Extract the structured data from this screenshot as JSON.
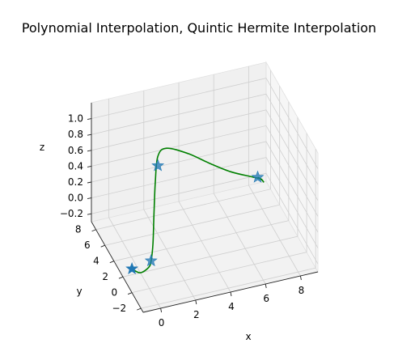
{
  "chart_data": {
    "type": "line",
    "projection": "3d",
    "title": "Polynomial Interpolation, Quintic Hermite Interpolation",
    "xlabel": "x",
    "ylabel": "y",
    "zlabel": "z",
    "xlim": [
      -1,
      9
    ],
    "ylim": [
      -2.5,
      9
    ],
    "zlim": [
      -0.3,
      1.2
    ],
    "x_ticks": [
      "0",
      "2",
      "4",
      "6",
      "8"
    ],
    "y_ticks": [
      "−2",
      "0",
      "2",
      "4",
      "6",
      "8"
    ],
    "z_ticks": [
      "−0.2",
      "0.0",
      "0.2",
      "0.4",
      "0.6",
      "0.8",
      "1.0"
    ],
    "grid": true,
    "series": [
      {
        "kind": "curve",
        "color": "#008000",
        "points": [
          [
            -1.0,
            0.0,
            0.0
          ],
          [
            -0.6,
            -0.3,
            -0.04
          ],
          [
            -0.1,
            -0.2,
            -0.01
          ],
          [
            0.2,
            0.4,
            0.0
          ],
          [
            0.45,
            0.95,
            0.15
          ],
          [
            0.6,
            1.3,
            0.5
          ],
          [
            0.75,
            1.6,
            0.85
          ],
          [
            1.0,
            2.0,
            1.12
          ],
          [
            1.6,
            2.4,
            1.15
          ],
          [
            3.0,
            3.0,
            0.95
          ],
          [
            4.5,
            4.0,
            0.65
          ],
          [
            6.0,
            5.2,
            0.35
          ],
          [
            7.5,
            6.3,
            0.1
          ],
          [
            8.1,
            6.7,
            0.0
          ],
          [
            8.3,
            6.85,
            -0.06
          ],
          [
            8.2,
            6.95,
            -0.03
          ],
          [
            8.0,
            7.0,
            0.0
          ]
        ]
      },
      {
        "kind": "markers",
        "marker": "star",
        "color": "#1f77b4",
        "points": [
          [
            -1.0,
            0.0,
            0.0
          ],
          [
            0.2,
            0.4,
            0.0
          ],
          [
            1.0,
            2.0,
            1.0
          ],
          [
            8.0,
            7.0,
            0.0
          ]
        ]
      }
    ]
  }
}
